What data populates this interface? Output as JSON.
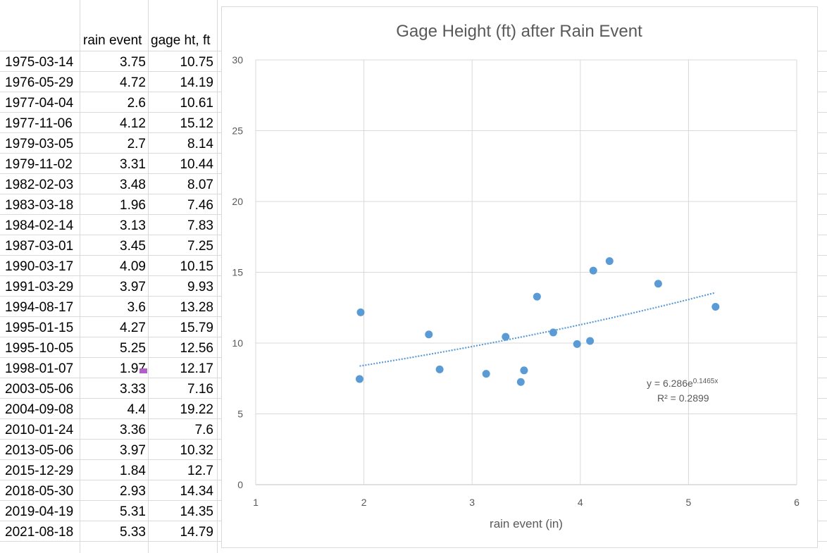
{
  "sheet": {
    "headers": {
      "rain": "rain event",
      "gage": "gage ht, ft"
    },
    "rows": [
      [
        "1975-03-14",
        "3.75",
        "10.75"
      ],
      [
        "1976-05-29",
        "4.72",
        "14.19"
      ],
      [
        "1977-04-04",
        "2.6",
        "10.61"
      ],
      [
        "1977-11-06",
        "4.12",
        "15.12"
      ],
      [
        "1979-03-05",
        "2.7",
        "8.14"
      ],
      [
        "1979-11-02",
        "3.31",
        "10.44"
      ],
      [
        "1982-02-03",
        "3.48",
        "8.07"
      ],
      [
        "1983-03-18",
        "1.96",
        "7.46"
      ],
      [
        "1984-02-14",
        "3.13",
        "7.83"
      ],
      [
        "1987-03-01",
        "3.45",
        "7.25"
      ],
      [
        "1990-03-17",
        "4.09",
        "10.15"
      ],
      [
        "1991-03-29",
        "3.97",
        "9.93"
      ],
      [
        "1994-08-17",
        "3.6",
        "13.28"
      ],
      [
        "1995-01-15",
        "4.27",
        "15.79"
      ],
      [
        "1995-10-05",
        "5.25",
        "12.56"
      ],
      [
        "1998-01-07",
        "1.97",
        "12.17"
      ],
      [
        "2003-05-06",
        "3.33",
        "7.16"
      ],
      [
        "2004-09-08",
        "4.4",
        "19.22"
      ],
      [
        "2010-01-24",
        "3.36",
        "7.6"
      ],
      [
        "2013-05-06",
        "3.97",
        "10.32"
      ],
      [
        "2015-12-29",
        "1.84",
        "12.7"
      ],
      [
        "2018-05-30",
        "2.93",
        "14.34"
      ],
      [
        "2019-04-19",
        "5.31",
        "14.35"
      ],
      [
        "2021-08-18",
        "5.33",
        "14.79"
      ]
    ]
  },
  "chart_data": {
    "type": "scatter",
    "title": "Gage Height (ft) after Rain Event",
    "xlabel": "rain event (in)",
    "ylabel": "",
    "xlim": [
      1,
      6
    ],
    "ylim": [
      0,
      30
    ],
    "xticks": [
      "1",
      "2",
      "3",
      "4",
      "5",
      "6"
    ],
    "yticks": [
      "0",
      "5",
      "10",
      "15",
      "20",
      "25",
      "30"
    ],
    "grid": true,
    "series": [
      {
        "color": "#5b9bd5",
        "x": [
          1.96,
          1.97,
          2.6,
          2.7,
          3.13,
          3.31,
          3.45,
          3.48,
          3.6,
          3.75,
          3.97,
          4.09,
          4.12,
          4.27,
          4.72,
          5.25
        ],
        "y": [
          7.46,
          12.17,
          10.61,
          8.14,
          7.83,
          10.44,
          7.25,
          8.07,
          13.28,
          10.75,
          9.93,
          10.15,
          15.12,
          15.79,
          14.19,
          12.56
        ]
      }
    ],
    "trendline": {
      "type": "exponential",
      "a": 6.286,
      "b": 0.1465,
      "x_range": [
        1.96,
        5.25
      ],
      "color": "#5b9bd5",
      "equation_base": "y = 6.286e",
      "equation_exp": "0.1465x",
      "r2_label": "R² = 0.2899"
    }
  }
}
